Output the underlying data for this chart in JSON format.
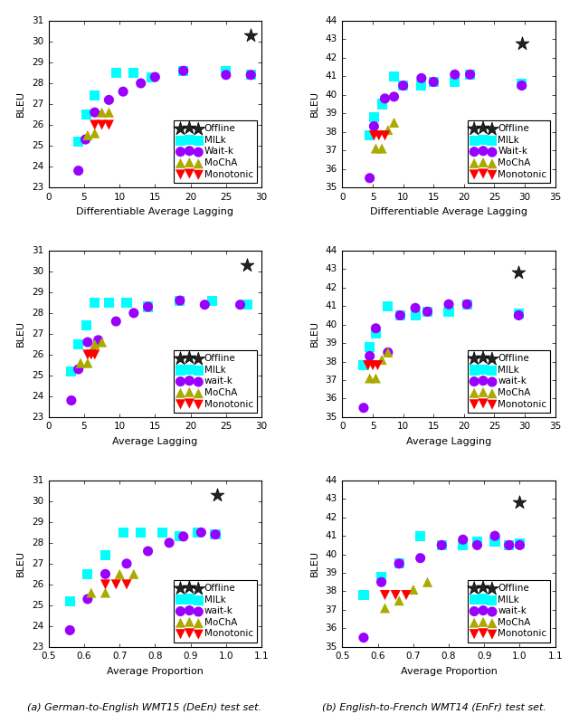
{
  "plots": [
    {
      "row": 0,
      "col": 0,
      "xlabel": "Differentiable Average Lagging",
      "ylabel": "BLEU",
      "xlim": [
        0,
        30
      ],
      "ylim": [
        23,
        31
      ],
      "xticks": [
        0,
        5,
        10,
        15,
        20,
        25,
        30
      ],
      "yticks": [
        23,
        24,
        25,
        26,
        27,
        28,
        29,
        30,
        31
      ],
      "legend_labels": [
        "Offline",
        "MILk",
        "Wait-k",
        "MoChA",
        "Monotonic"
      ],
      "series": {
        "offline": {
          "x": [
            28.5
          ],
          "y": [
            30.3
          ],
          "color": "#222222",
          "marker": "*",
          "ms": 5
        },
        "milk": {
          "x": [
            4.2,
            5.3,
            6.5,
            9.5,
            12.0,
            14.5,
            19.0,
            25.0,
            28.5
          ],
          "y": [
            25.2,
            26.5,
            27.4,
            28.5,
            28.5,
            28.3,
            28.6,
            28.6,
            28.4
          ],
          "color": "cyan",
          "marker": "s",
          "ms": 4
        },
        "waitk": {
          "x": [
            4.2,
            5.2,
            6.5,
            8.5,
            10.5,
            13.0,
            15.0,
            19.0,
            25.0,
            28.5
          ],
          "y": [
            23.8,
            25.3,
            26.6,
            27.2,
            27.6,
            28.0,
            28.3,
            28.6,
            28.4,
            28.4
          ],
          "color": "#9900ff",
          "marker": "o",
          "ms": 4
        },
        "mocha": {
          "x": [
            5.5,
            6.5,
            7.5,
            8.5
          ],
          "y": [
            25.5,
            25.6,
            26.6,
            26.6
          ],
          "color": "#aaaa00",
          "marker": "^",
          "ms": 4
        },
        "monotonic": {
          "x": [
            6.5,
            7.5,
            8.5
          ],
          "y": [
            26.0,
            26.0,
            26.0
          ],
          "color": "red",
          "marker": "v",
          "ms": 4
        }
      }
    },
    {
      "row": 0,
      "col": 1,
      "xlabel": "Differentiable Average Lagging",
      "ylabel": "BLEU",
      "xlim": [
        0,
        35
      ],
      "ylim": [
        35,
        44
      ],
      "xticks": [
        0,
        5,
        10,
        15,
        20,
        25,
        30,
        35
      ],
      "yticks": [
        35,
        36,
        37,
        38,
        39,
        40,
        41,
        42,
        43,
        44
      ],
      "legend_labels": [
        "Offline",
        "MILk",
        "Wait-k",
        "MoChA",
        "Monotonic"
      ],
      "series": {
        "offline": {
          "x": [
            29.5
          ],
          "y": [
            42.8
          ],
          "color": "#222222",
          "marker": "*",
          "ms": 5
        },
        "milk": {
          "x": [
            4.5,
            5.2,
            6.5,
            8.5,
            10.0,
            13.0,
            15.0,
            18.5,
            21.0,
            29.5
          ],
          "y": [
            37.8,
            38.8,
            39.5,
            41.0,
            40.5,
            40.5,
            40.7,
            40.7,
            41.1,
            40.6
          ],
          "color": "cyan",
          "marker": "s",
          "ms": 4
        },
        "waitk": {
          "x": [
            4.5,
            5.2,
            7.0,
            8.5,
            10.0,
            13.0,
            15.0,
            18.5,
            21.0,
            29.5
          ],
          "y": [
            35.5,
            38.3,
            39.8,
            39.9,
            40.5,
            40.9,
            40.7,
            41.1,
            41.1,
            40.5
          ],
          "color": "#9900ff",
          "marker": "o",
          "ms": 4
        },
        "mocha": {
          "x": [
            5.5,
            6.5,
            7.5,
            8.5
          ],
          "y": [
            37.1,
            37.1,
            38.1,
            38.5
          ],
          "color": "#aaaa00",
          "marker": "^",
          "ms": 4
        },
        "monotonic": {
          "x": [
            5.2,
            6.0,
            7.0
          ],
          "y": [
            37.8,
            37.8,
            37.8
          ],
          "color": "red",
          "marker": "v",
          "ms": 4
        }
      }
    },
    {
      "row": 1,
      "col": 0,
      "xlabel": "Average Lagging",
      "ylabel": "BLEU",
      "xlim": [
        0,
        30
      ],
      "ylim": [
        23,
        31
      ],
      "xticks": [
        0,
        5,
        10,
        15,
        20,
        25,
        30
      ],
      "yticks": [
        23,
        24,
        25,
        26,
        27,
        28,
        29,
        30,
        31
      ],
      "legend_labels": [
        "Offline",
        "MILk",
        "wait-k",
        "MoChA",
        "Monotonic"
      ],
      "series": {
        "offline": {
          "x": [
            28.0
          ],
          "y": [
            30.3
          ],
          "color": "#222222",
          "marker": "*",
          "ms": 5
        },
        "milk": {
          "x": [
            3.2,
            4.2,
            5.3,
            6.5,
            8.5,
            11.0,
            14.0,
            18.5,
            23.0,
            28.0
          ],
          "y": [
            25.2,
            26.5,
            27.4,
            28.5,
            28.5,
            28.5,
            28.3,
            28.6,
            28.6,
            28.4
          ],
          "color": "cyan",
          "marker": "s",
          "ms": 4
        },
        "waitk": {
          "x": [
            3.2,
            4.2,
            5.5,
            7.0,
            9.5,
            12.0,
            14.0,
            18.5,
            22.0,
            27.0
          ],
          "y": [
            23.8,
            25.3,
            26.6,
            26.7,
            27.6,
            28.0,
            28.3,
            28.6,
            28.4,
            28.4
          ],
          "color": "#9900ff",
          "marker": "o",
          "ms": 4
        },
        "mocha": {
          "x": [
            4.5,
            5.5,
            6.5,
            7.5
          ],
          "y": [
            25.6,
            25.6,
            26.5,
            26.6
          ],
          "color": "#aaaa00",
          "marker": "^",
          "ms": 4
        },
        "monotonic": {
          "x": [
            5.5,
            6.0,
            6.5
          ],
          "y": [
            26.0,
            26.0,
            26.0
          ],
          "color": "red",
          "marker": "v",
          "ms": 4
        }
      }
    },
    {
      "row": 1,
      "col": 1,
      "xlabel": "Average Lagging",
      "ylabel": "BLEU",
      "xlim": [
        0,
        35
      ],
      "ylim": [
        35,
        44
      ],
      "xticks": [
        0,
        5,
        10,
        15,
        20,
        25,
        30,
        35
      ],
      "yticks": [
        35,
        36,
        37,
        38,
        39,
        40,
        41,
        42,
        43,
        44
      ],
      "legend_labels": [
        "Offline",
        "MILk",
        "wait-k",
        "MoChA",
        "Monotonic"
      ],
      "series": {
        "offline": {
          "x": [
            29.0
          ],
          "y": [
            42.8
          ],
          "color": "#222222",
          "marker": "*",
          "ms": 5
        },
        "milk": {
          "x": [
            3.5,
            4.5,
            5.5,
            7.5,
            9.5,
            12.0,
            14.0,
            17.5,
            20.5,
            29.0
          ],
          "y": [
            37.8,
            38.8,
            39.5,
            41.0,
            40.5,
            40.5,
            40.7,
            40.7,
            41.1,
            40.6
          ],
          "color": "cyan",
          "marker": "s",
          "ms": 4
        },
        "waitk": {
          "x": [
            3.5,
            4.5,
            5.5,
            7.5,
            9.5,
            12.0,
            14.0,
            17.5,
            20.5,
            29.0
          ],
          "y": [
            35.5,
            38.3,
            39.8,
            38.5,
            40.5,
            40.9,
            40.7,
            41.1,
            41.1,
            40.5
          ],
          "color": "#9900ff",
          "marker": "o",
          "ms": 4
        },
        "mocha": {
          "x": [
            4.5,
            5.5,
            6.5,
            7.5
          ],
          "y": [
            37.1,
            37.1,
            38.1,
            38.5
          ],
          "color": "#aaaa00",
          "marker": "^",
          "ms": 4
        },
        "monotonic": {
          "x": [
            4.2,
            5.0,
            5.8
          ],
          "y": [
            37.8,
            37.8,
            37.8
          ],
          "color": "red",
          "marker": "v",
          "ms": 4
        }
      }
    },
    {
      "row": 2,
      "col": 0,
      "xlabel": "Average Proportion",
      "ylabel": "BLEU",
      "xlim": [
        0.5,
        1.1
      ],
      "ylim": [
        23,
        31
      ],
      "xticks": [
        0.5,
        0.6,
        0.7,
        0.8,
        0.9,
        1.0,
        1.1
      ],
      "yticks": [
        23,
        24,
        25,
        26,
        27,
        28,
        29,
        30,
        31
      ],
      "legend_labels": [
        "Offline",
        "MILk",
        "wait-k",
        "MoChA",
        "Monotonic"
      ],
      "series": {
        "offline": {
          "x": [
            0.975
          ],
          "y": [
            30.3
          ],
          "color": "#222222",
          "marker": "*",
          "ms": 5
        },
        "milk": {
          "x": [
            0.56,
            0.61,
            0.66,
            0.71,
            0.76,
            0.82,
            0.87,
            0.92,
            0.97
          ],
          "y": [
            25.2,
            26.5,
            27.4,
            28.5,
            28.5,
            28.5,
            28.3,
            28.5,
            28.4
          ],
          "color": "cyan",
          "marker": "s",
          "ms": 4
        },
        "waitk": {
          "x": [
            0.56,
            0.61,
            0.66,
            0.72,
            0.78,
            0.84,
            0.88,
            0.93,
            0.97
          ],
          "y": [
            23.8,
            25.3,
            26.5,
            27.0,
            27.6,
            28.0,
            28.3,
            28.5,
            28.4
          ],
          "color": "#9900ff",
          "marker": "o",
          "ms": 4
        },
        "mocha": {
          "x": [
            0.62,
            0.66,
            0.7,
            0.74
          ],
          "y": [
            25.6,
            25.6,
            26.5,
            26.5
          ],
          "color": "#aaaa00",
          "marker": "^",
          "ms": 4
        },
        "monotonic": {
          "x": [
            0.66,
            0.69,
            0.72
          ],
          "y": [
            26.0,
            26.0,
            26.0
          ],
          "color": "red",
          "marker": "v",
          "ms": 4
        }
      }
    },
    {
      "row": 2,
      "col": 1,
      "xlabel": "Average Proportion",
      "ylabel": "BLEU",
      "xlim": [
        0.5,
        1.1
      ],
      "ylim": [
        35,
        44
      ],
      "xticks": [
        0.5,
        0.6,
        0.7,
        0.8,
        0.9,
        1.0,
        1.1
      ],
      "yticks": [
        35,
        36,
        37,
        38,
        39,
        40,
        41,
        42,
        43,
        44
      ],
      "legend_labels": [
        "Offline",
        "MILk",
        "wait-k",
        "MoChA",
        "Monotonic"
      ],
      "series": {
        "offline": {
          "x": [
            1.0
          ],
          "y": [
            42.8
          ],
          "color": "#222222",
          "marker": "*",
          "ms": 5
        },
        "milk": {
          "x": [
            0.56,
            0.61,
            0.66,
            0.72,
            0.78,
            0.84,
            0.88,
            0.93,
            0.97,
            1.0
          ],
          "y": [
            37.8,
            38.8,
            39.5,
            41.0,
            40.5,
            40.5,
            40.7,
            40.7,
            40.5,
            40.6
          ],
          "color": "cyan",
          "marker": "s",
          "ms": 4
        },
        "waitk": {
          "x": [
            0.56,
            0.61,
            0.66,
            0.72,
            0.78,
            0.84,
            0.88,
            0.93,
            0.97,
            1.0
          ],
          "y": [
            35.5,
            38.5,
            39.5,
            39.8,
            40.5,
            40.8,
            40.5,
            41.0,
            40.5,
            40.5
          ],
          "color": "#9900ff",
          "marker": "o",
          "ms": 4
        },
        "mocha": {
          "x": [
            0.62,
            0.66,
            0.7,
            0.74
          ],
          "y": [
            37.1,
            37.5,
            38.1,
            38.5
          ],
          "color": "#aaaa00",
          "marker": "^",
          "ms": 4
        },
        "monotonic": {
          "x": [
            0.62,
            0.65,
            0.68
          ],
          "y": [
            37.8,
            37.8,
            37.8
          ],
          "color": "red",
          "marker": "v",
          "ms": 4
        }
      }
    }
  ],
  "col_titles": [
    "(a) German-to-English WMT15 (DeEn) test set.",
    "(b) English-to-French WMT14 (EnFr) test set."
  ],
  "fig_bg": "#f0f0f0"
}
